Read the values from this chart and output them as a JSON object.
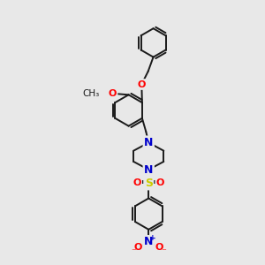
{
  "bg_color": "#e8e8e8",
  "bond_color": "#1a1a1a",
  "bond_width": 1.4,
  "atom_colors": {
    "N": "#0000cc",
    "O": "#ff0000",
    "S": "#cccc00",
    "C": "#1a1a1a"
  }
}
